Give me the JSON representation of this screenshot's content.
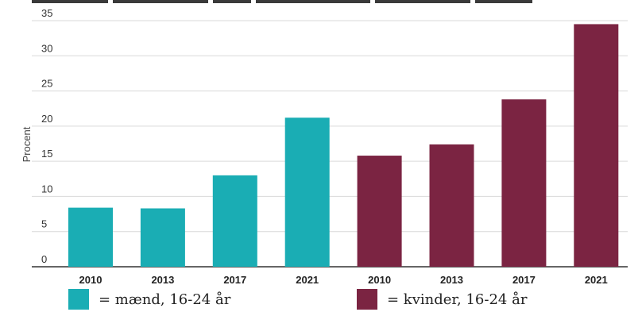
{
  "chart_data": {
    "type": "bar",
    "title": "",
    "ylabel": "Procent",
    "ylim": [
      0,
      35
    ],
    "yticks": [
      0,
      5,
      10,
      15,
      20,
      25,
      30,
      35
    ],
    "categories": [
      "2010",
      "2013",
      "2017",
      "2021",
      "2010",
      "2013",
      "2017",
      "2021"
    ],
    "values": [
      8.4,
      8.3,
      13.0,
      21.2,
      15.8,
      17.4,
      23.8,
      34.5
    ],
    "bar_colors": [
      "#1aadb4",
      "#1aadb4",
      "#1aadb4",
      "#1aadb4",
      "#7b2442",
      "#7b2442",
      "#7b2442",
      "#7b2442"
    ],
    "grid": true,
    "legend": [
      {
        "label": "= mænd, 16-24 år",
        "color": "#1aadb4"
      },
      {
        "label": "= kvinder, 16-24 år",
        "color": "#7b2442"
      }
    ]
  }
}
